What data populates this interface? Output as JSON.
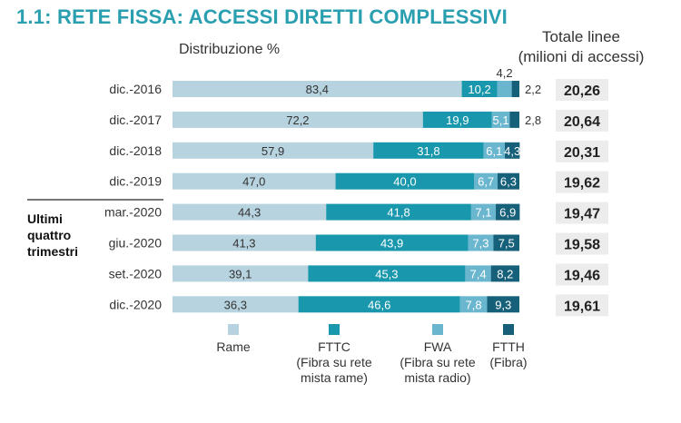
{
  "title": "1.1: RETE FISSA: ACCESSI DIRETTI COMPLESSIVI",
  "subtitle": "Distribuzione %",
  "totals_header": [
    "Totale linee",
    "(milioni di accessi)"
  ],
  "group_label": [
    "Ultimi",
    "quattro",
    "trimestri"
  ],
  "chart_data": {
    "type": "bar",
    "orientation": "horizontal",
    "stacked": "percent",
    "title": "1.1: RETE FISSA: ACCESSI DIRETTI COMPLESSIVI",
    "xlabel": "Distribuzione %",
    "ylabel": "",
    "xlim": [
      0,
      100
    ],
    "categories": [
      "dic.-2016",
      "dic.-2017",
      "dic.-2018",
      "dic.-2019",
      "mar.-2020",
      "giu.-2020",
      "set.-2020",
      "dic.-2020"
    ],
    "series": [
      {
        "name": "Rame",
        "color": "#b7d3df",
        "values": [
          83.4,
          72.2,
          57.9,
          47.0,
          44.3,
          41.3,
          39.1,
          36.3
        ],
        "labels": [
          "83,4",
          "72,2",
          "57,9",
          "47,0",
          "44,3",
          "41,3",
          "39,1",
          "36,3"
        ]
      },
      {
        "name": "FTTC",
        "color": "#1897ad",
        "values": [
          10.2,
          19.9,
          31.8,
          40.0,
          41.8,
          43.9,
          45.3,
          46.6
        ],
        "labels": [
          "10,2",
          "19,9",
          "31,8",
          "40,0",
          "41,8",
          "43,9",
          "45,3",
          "46,6"
        ]
      },
      {
        "name": "FWA",
        "color": "#6ab6cf",
        "values": [
          4.2,
          5.1,
          6.1,
          6.7,
          7.1,
          7.3,
          7.4,
          7.8
        ],
        "labels": [
          "4,2",
          "5,1",
          "6,1",
          "6,7",
          "7,1",
          "7,3",
          "7,4",
          "7,8"
        ]
      },
      {
        "name": "FTTH",
        "color": "#17607a",
        "values": [
          2.2,
          2.8,
          4.3,
          6.3,
          6.9,
          7.5,
          8.2,
          9.3
        ],
        "labels": [
          "2,2",
          "2,8",
          "4,3",
          "6,3",
          "6,9",
          "7,5",
          "8,2",
          "9,3"
        ]
      }
    ],
    "totals": [
      "20,26",
      "20,64",
      "20,31",
      "19,62",
      "19,47",
      "19,58",
      "19,46",
      "19,61"
    ],
    "outside_labels": {
      "dic.-2016": [
        "FWA",
        "FTTH"
      ],
      "dic.-2017": [
        "FTTH"
      ]
    },
    "total_box_color": "#ececec"
  },
  "legend": [
    {
      "name": "Rame",
      "color": "#b7d3df",
      "lines": [
        "Rame"
      ]
    },
    {
      "name": "FTTC",
      "color": "#1897ad",
      "lines": [
        "FTTC",
        "(Fibra su rete",
        "mista rame)"
      ]
    },
    {
      "name": "FWA",
      "color": "#6ab6cf",
      "lines": [
        "FWA",
        "(Fibra su rete",
        "mista radio)"
      ]
    },
    {
      "name": "FTTH",
      "color": "#17607a",
      "lines": [
        "FTTH",
        "(Fibra)"
      ]
    }
  ]
}
